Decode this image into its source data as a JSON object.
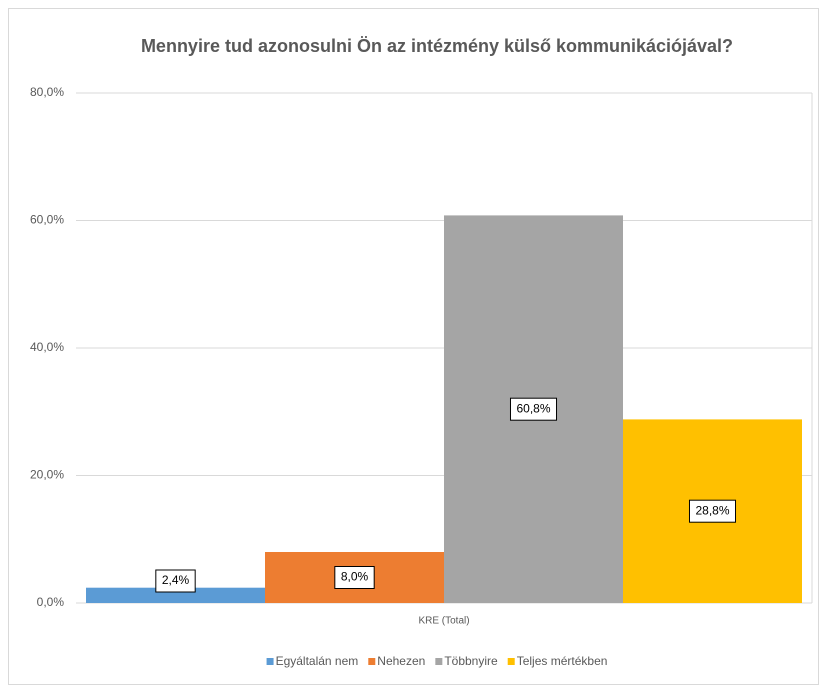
{
  "chart_data": {
    "type": "bar",
    "title": "Mennyire tud azonosulni Ön az intézmény külső kommunikációjával?",
    "categories": [
      "KRE (Total)"
    ],
    "series": [
      {
        "name": "Egyáltalán nem",
        "color": "#5b9bd5",
        "values": [
          2.4
        ],
        "value_labels": [
          "2,4%"
        ]
      },
      {
        "name": "Nehezen",
        "color": "#ed7d31",
        "values": [
          8.0
        ],
        "value_labels": [
          "8,0%"
        ]
      },
      {
        "name": "Többnyire",
        "color": "#a5a5a5",
        "values": [
          60.8
        ],
        "value_labels": [
          "60,8%"
        ]
      },
      {
        "name": "Teljes mértékben",
        "color": "#ffc000",
        "values": [
          28.8
        ],
        "value_labels": [
          "28,8%"
        ]
      }
    ],
    "ylim": [
      0,
      80
    ],
    "yticks": [
      {
        "value": 0,
        "label": "0,0%"
      },
      {
        "value": 20,
        "label": "20,0%"
      },
      {
        "value": 40,
        "label": "40,0%"
      },
      {
        "value": 60,
        "label": "60,0%"
      },
      {
        "value": 80,
        "label": "80,0%"
      }
    ],
    "grid": true,
    "legend": "bottom"
  }
}
